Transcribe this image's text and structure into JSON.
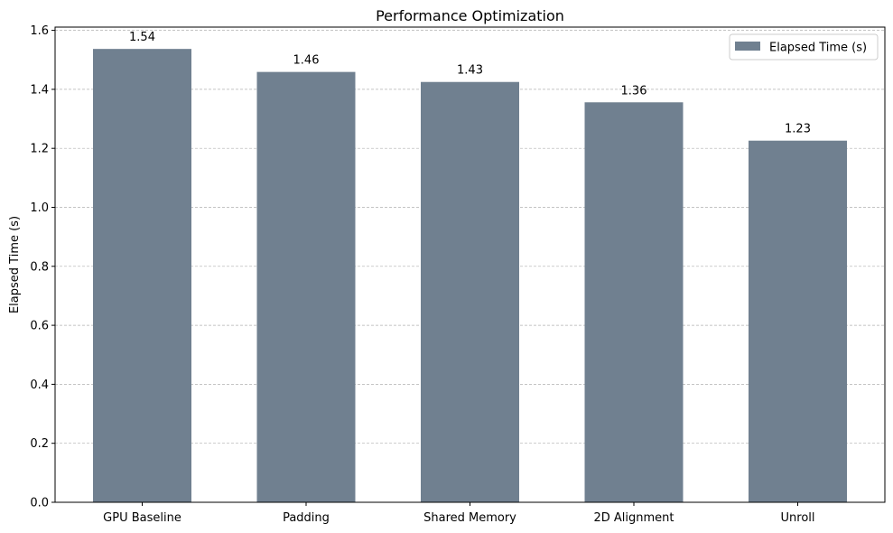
{
  "chart_data": {
    "type": "bar",
    "title": "Performance Optimization",
    "xlabel": "",
    "ylabel": "Elapsed Time (s)",
    "categories": [
      "GPU Baseline",
      "Padding",
      "Shared Memory",
      "2D Alignment",
      "Unroll"
    ],
    "series": [
      {
        "name": "Elapsed Time (s)",
        "values": [
          1.537,
          1.459,
          1.425,
          1.356,
          1.226
        ],
        "labels": [
          "1.54",
          "1.46",
          "1.43",
          "1.36",
          "1.23"
        ],
        "color": "#708090"
      }
    ],
    "ylim": [
      0,
      1.6
    ],
    "yticks": [
      "0.0",
      "0.2",
      "0.4",
      "0.6",
      "0.8",
      "1.0",
      "1.2",
      "1.4",
      "1.6"
    ],
    "ytick_values": [
      0,
      0.2,
      0.4,
      0.6,
      0.8,
      1.0,
      1.2,
      1.4,
      1.6
    ],
    "grid": "y-dashed",
    "legend_position": "top-right"
  }
}
